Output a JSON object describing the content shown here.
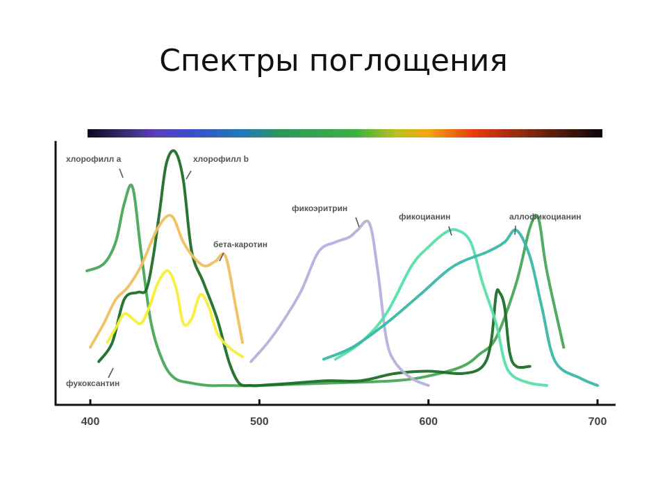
{
  "title": "Спектры поглощения",
  "chart_data": {
    "type": "line",
    "xlabel": "",
    "ylabel": "",
    "xlim": [
      390,
      710
    ],
    "ylim": [
      0,
      1
    ],
    "x_ticks": [
      400,
      500,
      600,
      700
    ],
    "x_tick_labels": [
      "400",
      "500",
      "600",
      "700"
    ],
    "grid": false,
    "spectrum_bar": true,
    "series": [
      {
        "name": "хлорофилл a",
        "color": "#4aa75a",
        "x": [
          398,
          408,
          415,
          420,
          425,
          430,
          436,
          443,
          450,
          460,
          470,
          480,
          500,
          540,
          580,
          600,
          620,
          630,
          640,
          652,
          660,
          665,
          670,
          680
        ],
        "y": [
          0.5,
          0.53,
          0.62,
          0.78,
          0.85,
          0.58,
          0.28,
          0.12,
          0.05,
          0.03,
          0.02,
          0.02,
          0.02,
          0.03,
          0.04,
          0.06,
          0.1,
          0.15,
          0.22,
          0.45,
          0.68,
          0.72,
          0.5,
          0.18
        ]
      },
      {
        "name": "хлорофилл b",
        "color": "#1e6e28",
        "x": [
          405,
          413,
          420,
          428,
          433,
          437,
          441,
          445,
          450,
          455,
          460,
          467,
          475,
          482,
          488,
          495,
          500,
          520,
          540,
          560,
          580,
          600,
          620,
          632,
          637,
          640,
          642,
          645,
          648,
          652,
          660
        ],
        "y": [
          0.12,
          0.2,
          0.38,
          0.41,
          0.42,
          0.55,
          0.75,
          0.95,
          1.0,
          0.88,
          0.58,
          0.45,
          0.3,
          0.12,
          0.03,
          0.02,
          0.02,
          0.03,
          0.04,
          0.04,
          0.07,
          0.08,
          0.07,
          0.1,
          0.2,
          0.4,
          0.41,
          0.35,
          0.16,
          0.1,
          0.1
        ]
      },
      {
        "name": "бета-каротин",
        "color": "#f0c060",
        "x": [
          400,
          408,
          415,
          422,
          430,
          440,
          448,
          455,
          462,
          468,
          474,
          480,
          486,
          490
        ],
        "y": [
          0.18,
          0.28,
          0.38,
          0.43,
          0.52,
          0.68,
          0.73,
          0.62,
          0.55,
          0.52,
          0.54,
          0.56,
          0.35,
          0.2
        ]
      },
      {
        "name": "фукоксантин",
        "color": "#f5ef3a",
        "x": [
          410,
          415,
          420,
          425,
          430,
          435,
          440,
          446,
          451,
          455,
          460,
          465,
          470,
          475,
          482,
          490
        ],
        "y": [
          0.2,
          0.26,
          0.32,
          0.3,
          0.28,
          0.35,
          0.45,
          0.5,
          0.42,
          0.28,
          0.3,
          0.4,
          0.35,
          0.24,
          0.18,
          0.14
        ]
      },
      {
        "name": "фикоэритрин",
        "color": "#b6b0dc",
        "x": [
          495,
          505,
          515,
          525,
          535,
          545,
          553,
          558,
          565,
          570,
          575,
          580,
          590,
          600
        ],
        "y": [
          0.12,
          0.2,
          0.3,
          0.42,
          0.58,
          0.62,
          0.64,
          0.67,
          0.7,
          0.5,
          0.22,
          0.12,
          0.05,
          0.02
        ]
      },
      {
        "name": "фикоцианин",
        "color": "#56e0a6",
        "x": [
          545,
          560,
          575,
          590,
          600,
          610,
          617,
          625,
          632,
          640,
          645,
          650,
          660,
          670
        ],
        "y": [
          0.13,
          0.2,
          0.32,
          0.52,
          0.6,
          0.66,
          0.67,
          0.62,
          0.45,
          0.28,
          0.12,
          0.06,
          0.03,
          0.02
        ]
      },
      {
        "name": "аллофикоцианин",
        "color": "#3ab8a8",
        "x": [
          538,
          555,
          575,
          595,
          615,
          635,
          645,
          652,
          660,
          667,
          675,
          690,
          700
        ],
        "y": [
          0.13,
          0.18,
          0.28,
          0.4,
          0.52,
          0.58,
          0.62,
          0.67,
          0.56,
          0.35,
          0.12,
          0.05,
          0.02
        ]
      }
    ],
    "annotations": [
      {
        "text": "хлорофилл a",
        "target": "хлорофилл a"
      },
      {
        "text": "хлорофилл b",
        "target": "хлорофилл b"
      },
      {
        "text": "бета-каротин",
        "target": "бета-каротин"
      },
      {
        "text": "фукоксантин",
        "target": "фукоксантин"
      },
      {
        "text": "фикоэритрин",
        "target": "фикоэритрин"
      },
      {
        "text": "фикоцианин",
        "target": "фикоцианин"
      },
      {
        "text": "аллофикоцианин",
        "target": "аллофикоцианин"
      }
    ]
  }
}
